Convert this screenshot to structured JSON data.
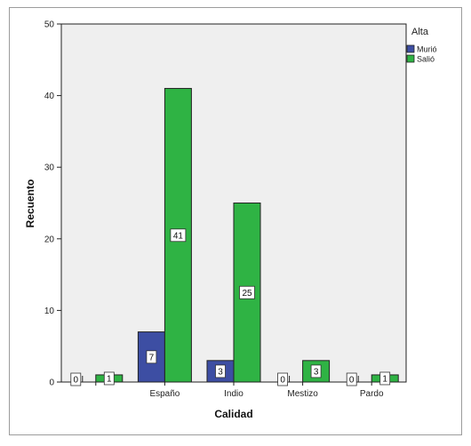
{
  "chart_data": {
    "type": "bar",
    "xlabel": "Calidad",
    "ylabel": "Recuento",
    "categories": [
      "",
      "Españo",
      "Indio",
      "Mestizo",
      "Pardo"
    ],
    "ylim": [
      0,
      50
    ],
    "yticks": [
      0,
      10,
      20,
      30,
      40,
      50
    ],
    "legend": {
      "title": "Alta",
      "position": "top-right"
    },
    "series": [
      {
        "name": "Murió",
        "color": "#3d4ea3",
        "values": [
          0,
          7,
          3,
          0,
          0
        ]
      },
      {
        "name": "Salió",
        "color": "#2fb344",
        "values": [
          1,
          41,
          25,
          3,
          1
        ]
      }
    ],
    "grid": false
  }
}
